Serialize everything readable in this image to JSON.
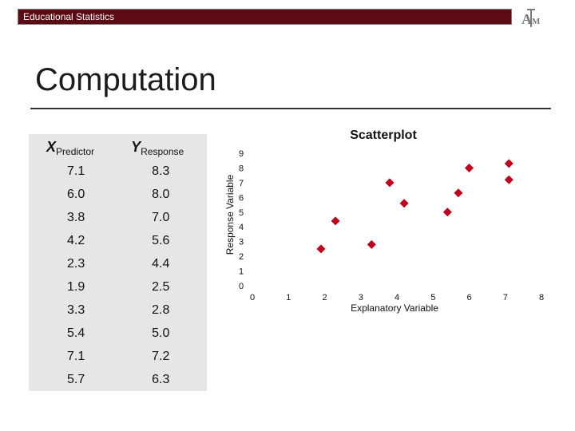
{
  "header": {
    "title": "Educational Statistics",
    "logo_text": "ATM"
  },
  "page": {
    "title": "Computation"
  },
  "table": {
    "x_label": "X",
    "x_sub": "Predictor",
    "y_label": "Y",
    "y_sub": "Response",
    "rows": [
      [
        "7.1",
        "8.3"
      ],
      [
        "6.0",
        "8.0"
      ],
      [
        "3.8",
        "7.0"
      ],
      [
        "4.2",
        "5.6"
      ],
      [
        "2.3",
        "4.4"
      ],
      [
        "1.9",
        "2.5"
      ],
      [
        "3.3",
        "2.8"
      ],
      [
        "5.4",
        "5.0"
      ],
      [
        "7.1",
        "7.2"
      ],
      [
        "5.7",
        "6.3"
      ]
    ]
  },
  "chart_data": {
    "type": "scatter",
    "title": "Scatterplot",
    "xlabel": "Explanatory Variable",
    "ylabel": "Response Variable",
    "xlim": [
      0,
      8
    ],
    "ylim": [
      0,
      9
    ],
    "xticks": [
      "0",
      "1",
      "2",
      "3",
      "4",
      "5",
      "6",
      "7",
      "8"
    ],
    "yticks": [
      "0",
      "1",
      "2",
      "3",
      "4",
      "5",
      "6",
      "7",
      "8",
      "9"
    ],
    "grid": false,
    "marker_color": "#c0001c",
    "points": [
      {
        "x": 7.1,
        "y": 8.3
      },
      {
        "x": 6.0,
        "y": 8.0
      },
      {
        "x": 3.8,
        "y": 7.0
      },
      {
        "x": 4.2,
        "y": 5.6
      },
      {
        "x": 2.3,
        "y": 4.4
      },
      {
        "x": 1.9,
        "y": 2.5
      },
      {
        "x": 3.3,
        "y": 2.8
      },
      {
        "x": 5.4,
        "y": 5.0
      },
      {
        "x": 7.1,
        "y": 7.2
      },
      {
        "x": 5.7,
        "y": 6.3
      }
    ]
  },
  "colors": {
    "header_bg": "#5c0a14",
    "table_bg": "#e6e6e6",
    "marker": "#c0001c"
  }
}
